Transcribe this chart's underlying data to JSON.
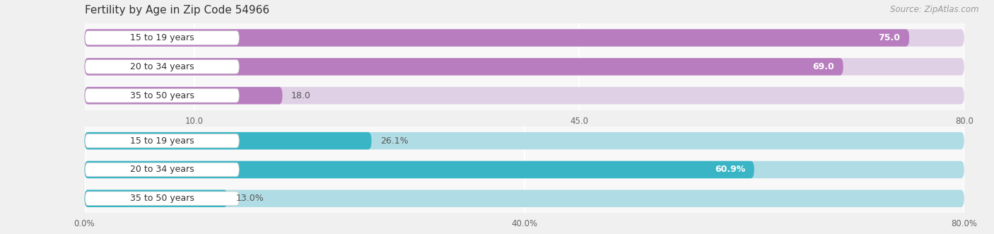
{
  "title": "Fertility by Age in Zip Code 54966",
  "source": "Source: ZipAtlas.com",
  "top_bars": {
    "categories": [
      "15 to 19 years",
      "20 to 34 years",
      "35 to 50 years"
    ],
    "values": [
      75.0,
      69.0,
      18.0
    ],
    "bar_color": "#b87dbf",
    "bar_bg_color": "#e0d0e5",
    "xmax": 80.0,
    "xticks": [
      10.0,
      45.0,
      80.0
    ],
    "value_labels": [
      "75.0",
      "69.0",
      "18.0"
    ],
    "value_inside": [
      true,
      true,
      false
    ]
  },
  "bottom_bars": {
    "categories": [
      "15 to 19 years",
      "20 to 34 years",
      "35 to 50 years"
    ],
    "values": [
      26.1,
      60.9,
      13.0
    ],
    "bar_color": "#3ab5c5",
    "bar_bg_color": "#b0dde5",
    "xmax": 80.0,
    "xticks": [
      0.0,
      40.0,
      80.0
    ],
    "tick_labels": [
      "0.0%",
      "40.0%",
      "80.0%"
    ],
    "value_labels": [
      "26.1%",
      "60.9%",
      "13.0%"
    ],
    "value_inside": [
      false,
      true,
      false
    ]
  },
  "fig_bg_color": "#f0f0f0",
  "panel_bg_color": "#f8f8f8",
  "label_fontsize": 9.0,
  "title_fontsize": 11,
  "source_fontsize": 8.5,
  "tick_fontsize": 8.5
}
